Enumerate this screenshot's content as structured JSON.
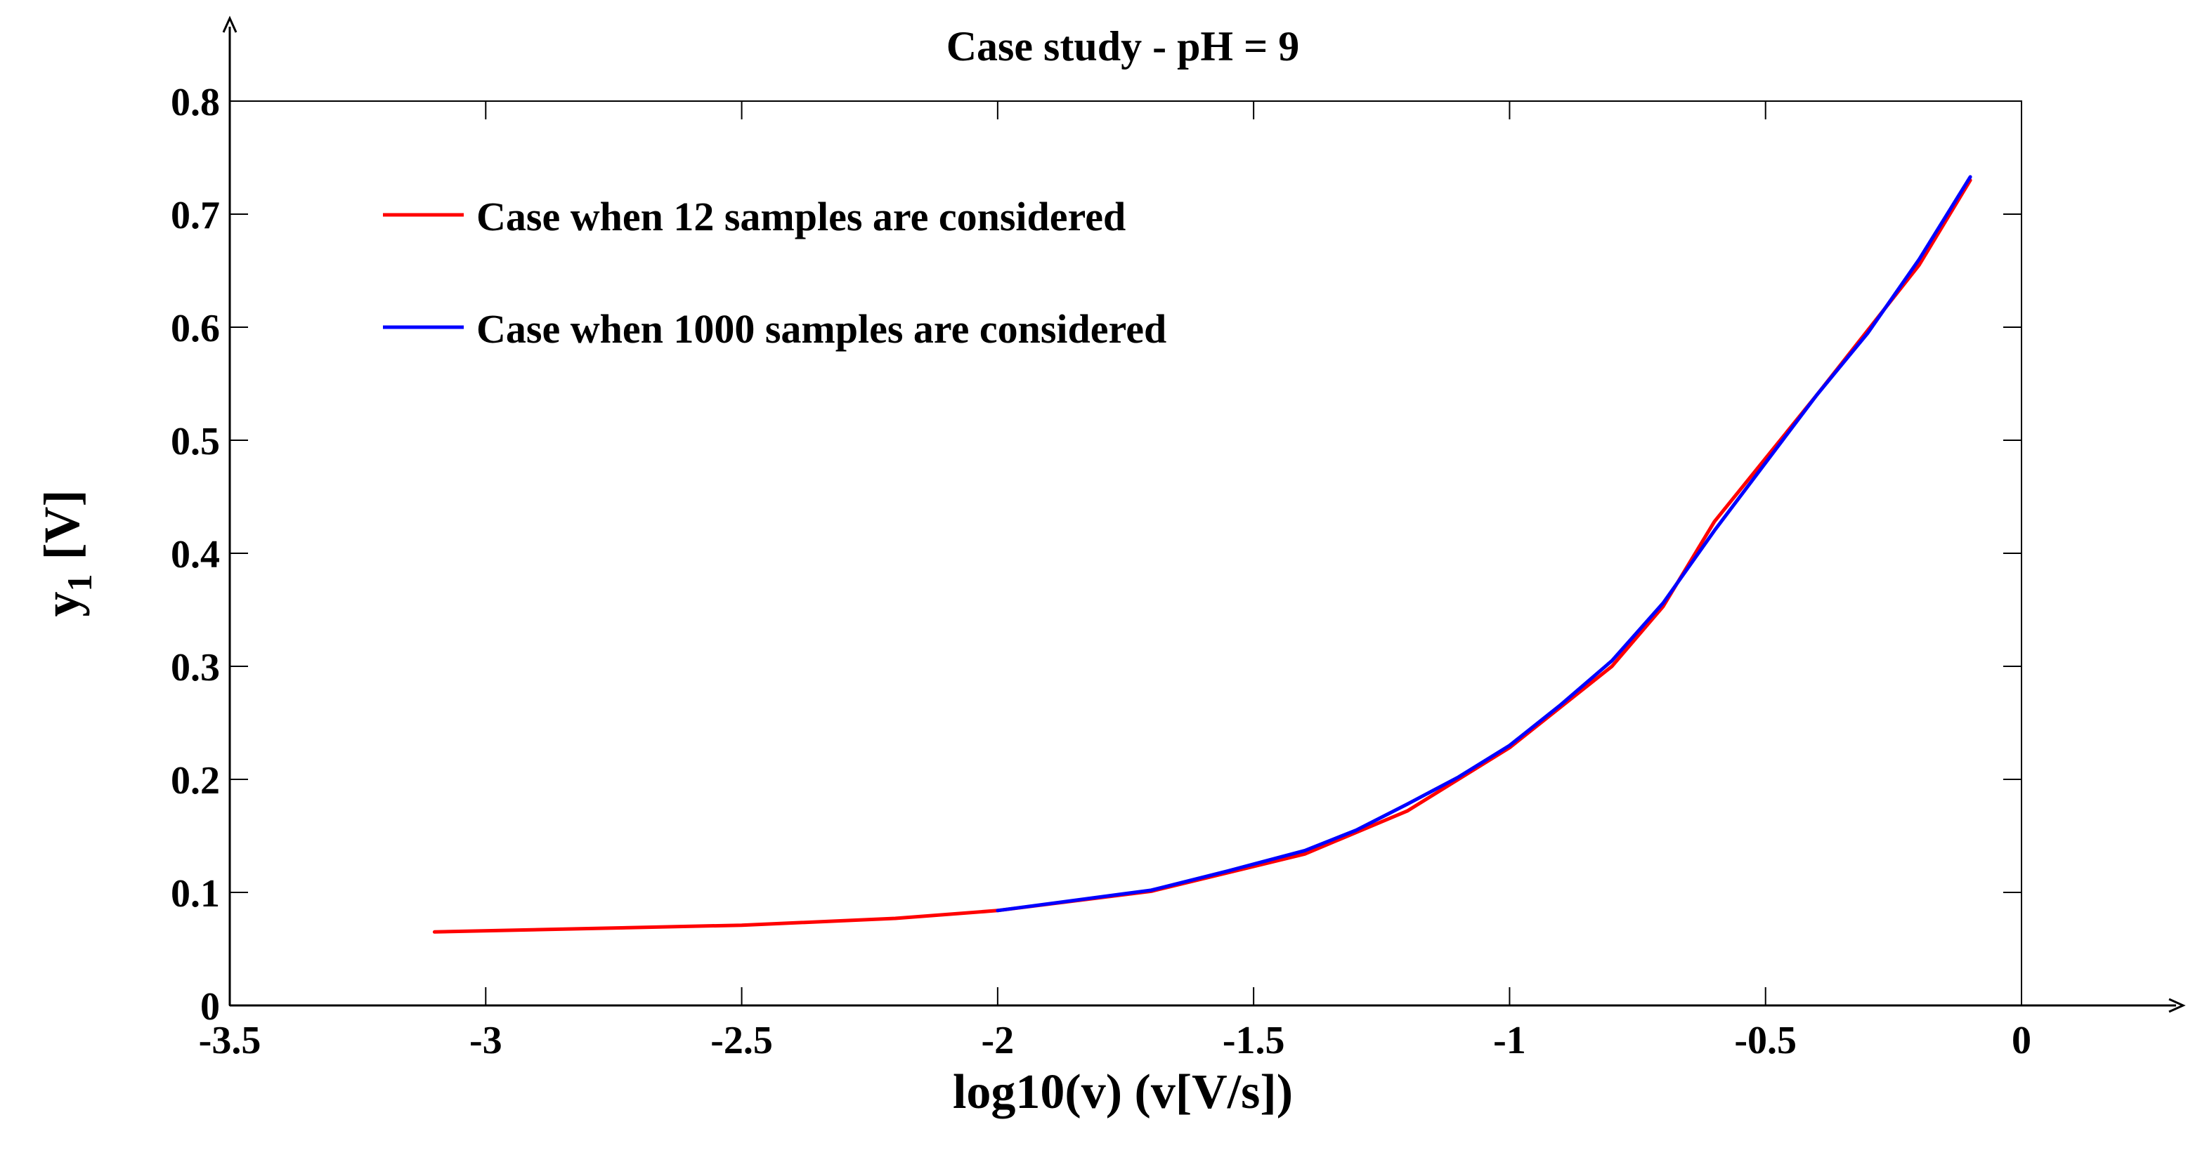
{
  "chart_data": {
    "type": "line",
    "title": "Case study - pH = 9",
    "xlabel": "log10(v) (v[V/s])",
    "ylabel_main": "y",
    "ylabel_sub": "1",
    "ylabel_unit": "[V]",
    "xlim": [
      -3.5,
      0
    ],
    "ylim": [
      0,
      0.8
    ],
    "x_ticks": [
      -3.5,
      -3,
      -2.5,
      -2,
      -1.5,
      -1,
      -0.5,
      0
    ],
    "x_tick_labels": [
      "-3.5",
      "-3",
      "-2.5",
      "-2",
      "-1.5",
      "-1",
      "-0.5",
      "0"
    ],
    "y_ticks": [
      0,
      0.1,
      0.2,
      0.3,
      0.4,
      0.5,
      0.6,
      0.7,
      0.8
    ],
    "y_tick_labels": [
      "0",
      "0.1",
      "0.2",
      "0.3",
      "0.4",
      "0.5",
      "0.6",
      "0.7",
      "0.8"
    ],
    "grid": false,
    "legend_position": "top-left",
    "series": [
      {
        "name": "Case when 12 samples are considered",
        "color": "#ff0000",
        "x": [
          -3.1,
          -2.8,
          -2.5,
          -2.2,
          -2.0,
          -1.7,
          -1.4,
          -1.2,
          -1.0,
          -0.8,
          -0.7,
          -0.6,
          -0.4,
          -0.2,
          -0.1
        ],
        "y": [
          0.065,
          0.068,
          0.071,
          0.077,
          0.084,
          0.101,
          0.134,
          0.172,
          0.228,
          0.3,
          0.353,
          0.428,
          0.54,
          0.655,
          0.73
        ]
      },
      {
        "name": "Case when 1000 samples are considered",
        "color": "#0000ff",
        "x": [
          -2.0,
          -1.85,
          -1.7,
          -1.55,
          -1.4,
          -1.3,
          -1.2,
          -1.1,
          -1.0,
          -0.9,
          -0.8,
          -0.7,
          -0.6,
          -0.5,
          -0.4,
          -0.3,
          -0.2,
          -0.1
        ],
        "y": [
          0.084,
          0.093,
          0.102,
          0.119,
          0.137,
          0.155,
          0.178,
          0.202,
          0.23,
          0.266,
          0.305,
          0.356,
          0.42,
          0.48,
          0.54,
          0.595,
          0.66,
          0.733
        ]
      }
    ]
  }
}
